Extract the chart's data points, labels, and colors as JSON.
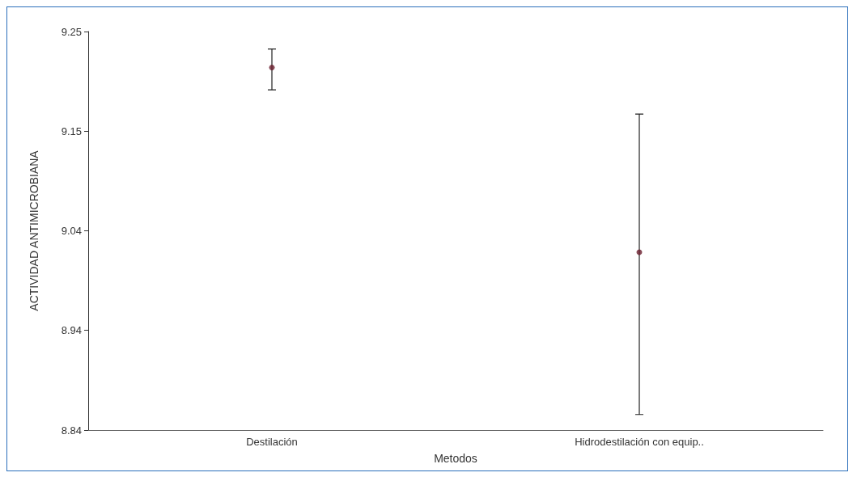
{
  "chart_data": {
    "type": "scatter",
    "xlabel": "Metodos",
    "ylabel": "ACTIVIDAD ANTIMICROBIANA",
    "categories": [
      "Destilación",
      "Hidrodestilación con equip.."
    ],
    "series": [
      {
        "color": "#6b1f2e",
        "values": [
          9.213,
          9.023
        ],
        "errors": [
          [
            9.19,
            9.232
          ],
          [
            8.856,
            9.165
          ]
        ]
      }
    ],
    "ylim": [
      8.84,
      9.25
    ],
    "yticks": [
      {
        "value": 8.84,
        "label": "8.84"
      },
      {
        "value": 8.9425,
        "label": "8.94"
      },
      {
        "value": 9.045,
        "label": "9.04"
      },
      {
        "value": 9.1475,
        "label": "9.15"
      },
      {
        "value": 9.25,
        "label": "9.25"
      }
    ],
    "grid": false,
    "marker": "circle"
  }
}
